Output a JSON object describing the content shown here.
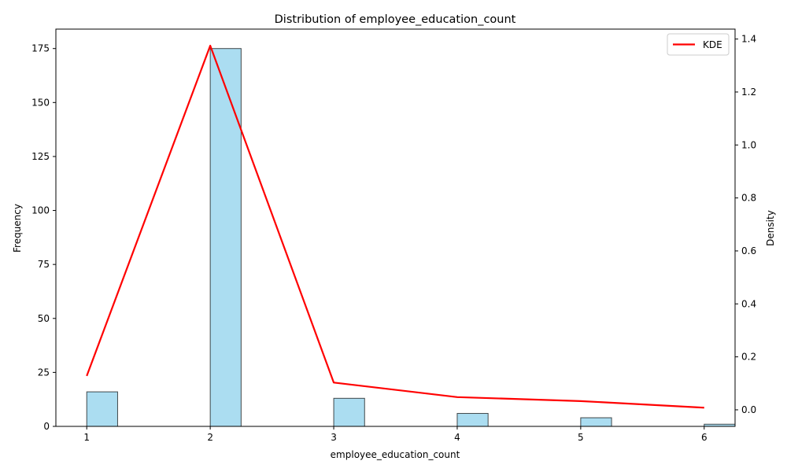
{
  "chart_data": {
    "type": "bar",
    "title": "Distribution of employee_education_count",
    "xlabel": "employee_education_count",
    "ylabel": "Frequency",
    "y2label": "Density",
    "xlim": [
      0.75,
      6.25
    ],
    "ylim": [
      0,
      184
    ],
    "y2lim": [
      -0.0625,
      1.4375
    ],
    "x_ticks": [
      "1",
      "2",
      "3",
      "4",
      "5",
      "6"
    ],
    "y_ticks": [
      "0",
      "25",
      "50",
      "75",
      "100",
      "125",
      "150",
      "175"
    ],
    "y2_ticks": [
      "0.0",
      "0.2",
      "0.4",
      "0.6",
      "0.8",
      "1.0",
      "1.2",
      "1.4"
    ],
    "bin_width": 0.25,
    "histogram": {
      "bins": [
        1,
        2,
        3,
        4,
        5,
        6
      ],
      "values": [
        16,
        175,
        13,
        6,
        4,
        1
      ],
      "fill": "#87CEEB",
      "edge": "#000000"
    },
    "series": [
      {
        "name": "KDE",
        "color": "#ff0000",
        "x": [
          1,
          2,
          3,
          4,
          5,
          6
        ],
        "values": [
          0.128,
          1.375,
          0.103,
          0.048,
          0.033,
          0.008
        ]
      }
    ],
    "legend": {
      "position": "top-right"
    },
    "grid": false
  }
}
